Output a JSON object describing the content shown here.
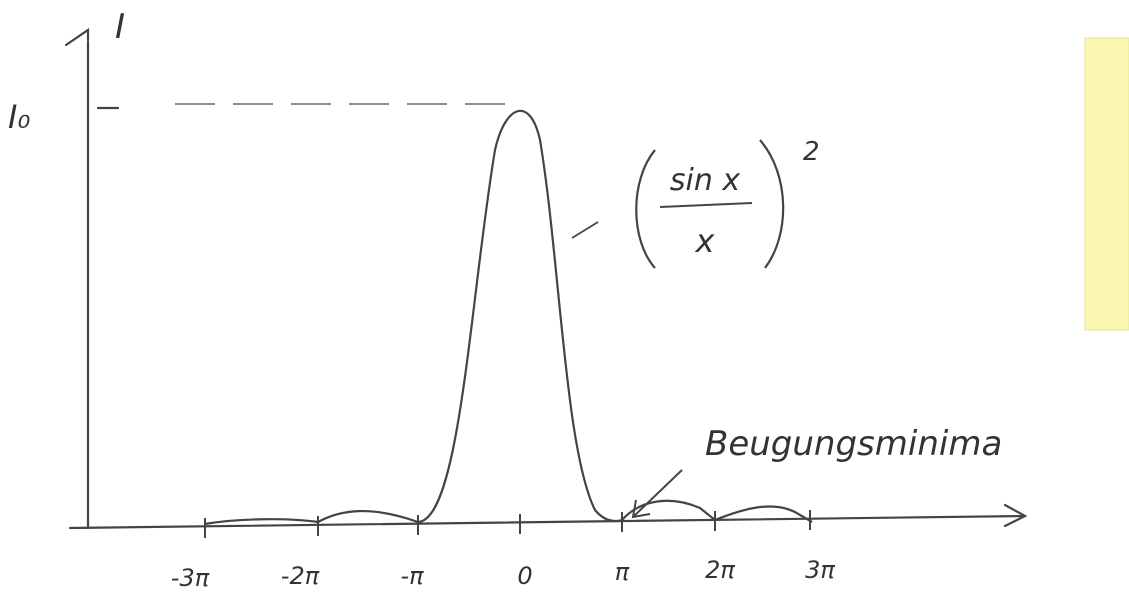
{
  "axes": {
    "y_label": "I",
    "y_max_label": "I₀"
  },
  "x_ticks": [
    "-3π",
    "-2π",
    "-π",
    "0",
    "π",
    "2π",
    "3π"
  ],
  "formula": {
    "numerator": "sin x",
    "denominator": "x",
    "exponent": "2"
  },
  "annotation": "Beugungsminima"
}
